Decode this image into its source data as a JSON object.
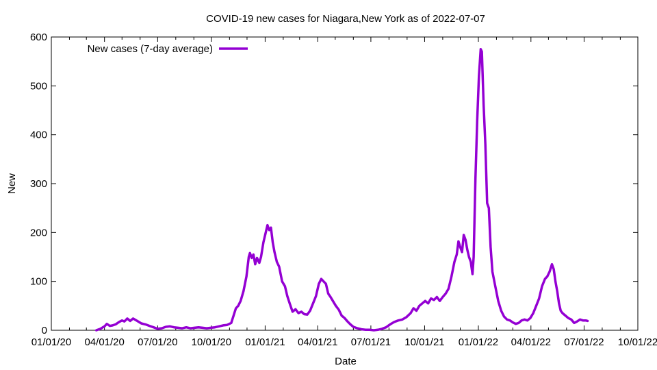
{
  "chart_data": {
    "type": "line",
    "title": "COVID-19 new cases for Niagara,New York as of 2022-07-07",
    "xlabel": "Date",
    "ylabel": "New",
    "grid": false,
    "legend_position": "top-left",
    "line_color": "#9400d3",
    "xlim": [
      "2020-01-01",
      "2022-10-01"
    ],
    "ylim": [
      0,
      600
    ],
    "x_ticks": [
      {
        "date": "2020-01-01",
        "label": "01/01/20"
      },
      {
        "date": "2020-04-01",
        "label": "04/01/20"
      },
      {
        "date": "2020-07-01",
        "label": "07/01/20"
      },
      {
        "date": "2020-10-01",
        "label": "10/01/20"
      },
      {
        "date": "2021-01-01",
        "label": "01/01/21"
      },
      {
        "date": "2021-04-01",
        "label": "04/01/21"
      },
      {
        "date": "2021-07-01",
        "label": "07/01/21"
      },
      {
        "date": "2021-10-01",
        "label": "10/01/21"
      },
      {
        "date": "2022-01-01",
        "label": "01/01/22"
      },
      {
        "date": "2022-04-01",
        "label": "04/01/22"
      },
      {
        "date": "2022-07-01",
        "label": "07/01/22"
      },
      {
        "date": "2022-10-01",
        "label": "10/01/22"
      }
    ],
    "y_ticks": [
      0,
      100,
      200,
      300,
      400,
      500,
      600
    ],
    "series": [
      {
        "name": "New cases (7-day average)",
        "points": [
          [
            "2020-03-18",
            0
          ],
          [
            "2020-03-25",
            3
          ],
          [
            "2020-04-01",
            8
          ],
          [
            "2020-04-05",
            13
          ],
          [
            "2020-04-10",
            9
          ],
          [
            "2020-04-15",
            10
          ],
          [
            "2020-04-20",
            12
          ],
          [
            "2020-04-26",
            17
          ],
          [
            "2020-05-01",
            20
          ],
          [
            "2020-05-05",
            18
          ],
          [
            "2020-05-10",
            24
          ],
          [
            "2020-05-15",
            19
          ],
          [
            "2020-05-20",
            24
          ],
          [
            "2020-05-27",
            19
          ],
          [
            "2020-06-03",
            14
          ],
          [
            "2020-06-10",
            12
          ],
          [
            "2020-06-17",
            9
          ],
          [
            "2020-06-24",
            6
          ],
          [
            "2020-07-01",
            3
          ],
          [
            "2020-07-08",
            4
          ],
          [
            "2020-07-15",
            7
          ],
          [
            "2020-07-22",
            8
          ],
          [
            "2020-07-29",
            6
          ],
          [
            "2020-08-05",
            5
          ],
          [
            "2020-08-12",
            4
          ],
          [
            "2020-08-19",
            6
          ],
          [
            "2020-08-26",
            4
          ],
          [
            "2020-09-02",
            5
          ],
          [
            "2020-09-09",
            6
          ],
          [
            "2020-09-16",
            5
          ],
          [
            "2020-09-23",
            4
          ],
          [
            "2020-09-30",
            5
          ],
          [
            "2020-10-07",
            6
          ],
          [
            "2020-10-14",
            8
          ],
          [
            "2020-10-21",
            10
          ],
          [
            "2020-10-28",
            11
          ],
          [
            "2020-11-04",
            15
          ],
          [
            "2020-11-08",
            30
          ],
          [
            "2020-11-12",
            45
          ],
          [
            "2020-11-16",
            50
          ],
          [
            "2020-11-20",
            60
          ],
          [
            "2020-11-25",
            80
          ],
          [
            "2020-11-30",
            110
          ],
          [
            "2020-12-04",
            150
          ],
          [
            "2020-12-06",
            158
          ],
          [
            "2020-12-09",
            148
          ],
          [
            "2020-12-12",
            155
          ],
          [
            "2020-12-15",
            135
          ],
          [
            "2020-12-18",
            148
          ],
          [
            "2020-12-22",
            138
          ],
          [
            "2020-12-25",
            150
          ],
          [
            "2020-12-29",
            180
          ],
          [
            "2021-01-02",
            200
          ],
          [
            "2021-01-05",
            215
          ],
          [
            "2021-01-08",
            205
          ],
          [
            "2021-01-11",
            210
          ],
          [
            "2021-01-14",
            180
          ],
          [
            "2021-01-17",
            160
          ],
          [
            "2021-01-21",
            140
          ],
          [
            "2021-01-25",
            130
          ],
          [
            "2021-01-30",
            100
          ],
          [
            "2021-02-04",
            90
          ],
          [
            "2021-02-08",
            70
          ],
          [
            "2021-02-12",
            55
          ],
          [
            "2021-02-17",
            38
          ],
          [
            "2021-02-22",
            43
          ],
          [
            "2021-02-27",
            35
          ],
          [
            "2021-03-04",
            38
          ],
          [
            "2021-03-09",
            33
          ],
          [
            "2021-03-14",
            32
          ],
          [
            "2021-03-19",
            40
          ],
          [
            "2021-03-24",
            55
          ],
          [
            "2021-03-29",
            70
          ],
          [
            "2021-04-03",
            95
          ],
          [
            "2021-04-07",
            105
          ],
          [
            "2021-04-11",
            100
          ],
          [
            "2021-04-15",
            95
          ],
          [
            "2021-04-19",
            75
          ],
          [
            "2021-04-23",
            68
          ],
          [
            "2021-04-27",
            60
          ],
          [
            "2021-05-02",
            50
          ],
          [
            "2021-05-07",
            42
          ],
          [
            "2021-05-12",
            30
          ],
          [
            "2021-05-17",
            25
          ],
          [
            "2021-05-22",
            18
          ],
          [
            "2021-05-27",
            12
          ],
          [
            "2021-06-01",
            7
          ],
          [
            "2021-06-08",
            4
          ],
          [
            "2021-06-15",
            2
          ],
          [
            "2021-06-22",
            1
          ],
          [
            "2021-06-29",
            1
          ],
          [
            "2021-07-06",
            0
          ],
          [
            "2021-07-13",
            1
          ],
          [
            "2021-07-20",
            3
          ],
          [
            "2021-07-27",
            6
          ],
          [
            "2021-08-03",
            12
          ],
          [
            "2021-08-10",
            17
          ],
          [
            "2021-08-17",
            20
          ],
          [
            "2021-08-24",
            22
          ],
          [
            "2021-08-31",
            27
          ],
          [
            "2021-09-07",
            35
          ],
          [
            "2021-09-12",
            45
          ],
          [
            "2021-09-17",
            40
          ],
          [
            "2021-09-22",
            50
          ],
          [
            "2021-09-27",
            55
          ],
          [
            "2021-10-02",
            60
          ],
          [
            "2021-10-07",
            55
          ],
          [
            "2021-10-12",
            65
          ],
          [
            "2021-10-17",
            62
          ],
          [
            "2021-10-22",
            68
          ],
          [
            "2021-10-27",
            60
          ],
          [
            "2021-11-01",
            68
          ],
          [
            "2021-11-06",
            75
          ],
          [
            "2021-11-11",
            85
          ],
          [
            "2021-11-16",
            110
          ],
          [
            "2021-11-21",
            140
          ],
          [
            "2021-11-25",
            155
          ],
          [
            "2021-11-28",
            182
          ],
          [
            "2021-12-01",
            170
          ],
          [
            "2021-12-04",
            160
          ],
          [
            "2021-12-07",
            195
          ],
          [
            "2021-12-10",
            185
          ],
          [
            "2021-12-13",
            165
          ],
          [
            "2021-12-16",
            150
          ],
          [
            "2021-12-19",
            140
          ],
          [
            "2021-12-22",
            115
          ],
          [
            "2021-12-24",
            150
          ],
          [
            "2021-12-27",
            310
          ],
          [
            "2021-12-30",
            430
          ],
          [
            "2022-01-02",
            520
          ],
          [
            "2022-01-05",
            575
          ],
          [
            "2022-01-07",
            570
          ],
          [
            "2022-01-10",
            460
          ],
          [
            "2022-01-13",
            380
          ],
          [
            "2022-01-16",
            260
          ],
          [
            "2022-01-19",
            250
          ],
          [
            "2022-01-22",
            170
          ],
          [
            "2022-01-25",
            120
          ],
          [
            "2022-01-30",
            90
          ],
          [
            "2022-02-04",
            60
          ],
          [
            "2022-02-09",
            40
          ],
          [
            "2022-02-14",
            28
          ],
          [
            "2022-02-19",
            22
          ],
          [
            "2022-02-24",
            20
          ],
          [
            "2022-03-01",
            16
          ],
          [
            "2022-03-06",
            13
          ],
          [
            "2022-03-11",
            15
          ],
          [
            "2022-03-16",
            20
          ],
          [
            "2022-03-21",
            22
          ],
          [
            "2022-03-26",
            20
          ],
          [
            "2022-03-31",
            25
          ],
          [
            "2022-04-05",
            35
          ],
          [
            "2022-04-10",
            50
          ],
          [
            "2022-04-15",
            65
          ],
          [
            "2022-04-20",
            90
          ],
          [
            "2022-04-25",
            105
          ],
          [
            "2022-04-29",
            110
          ],
          [
            "2022-05-03",
            120
          ],
          [
            "2022-05-07",
            135
          ],
          [
            "2022-05-10",
            125
          ],
          [
            "2022-05-13",
            100
          ],
          [
            "2022-05-16",
            80
          ],
          [
            "2022-05-19",
            55
          ],
          [
            "2022-05-22",
            40
          ],
          [
            "2022-05-25",
            35
          ],
          [
            "2022-05-30",
            30
          ],
          [
            "2022-06-04",
            25
          ],
          [
            "2022-06-09",
            22
          ],
          [
            "2022-06-14",
            15
          ],
          [
            "2022-06-19",
            18
          ],
          [
            "2022-06-24",
            22
          ],
          [
            "2022-06-29",
            20
          ],
          [
            "2022-07-04",
            20
          ],
          [
            "2022-07-07",
            19
          ]
        ]
      }
    ]
  }
}
